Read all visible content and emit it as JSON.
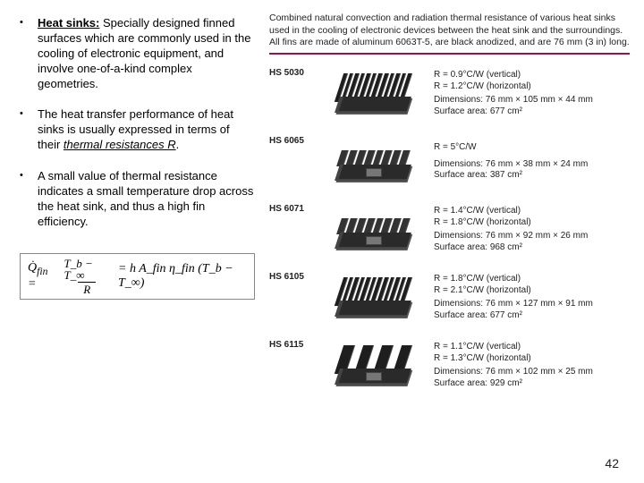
{
  "bullets": [
    {
      "lead": "Heat sinks:",
      "rest": " Specially designed finned surfaces which are commonly used in the cooling of electronic equipment, and involve one-of-a-kind complex geometries."
    },
    {
      "pre": "The heat transfer performance of heat sinks is usually expressed in terms of their ",
      "em": "thermal resistances R",
      "post": "."
    },
    {
      "text": "A small value of thermal resistance indicates a small temperature drop across the heat sink, and thus a high fin efficiency."
    }
  ],
  "formula": {
    "qdot": "Q̇",
    "qsub": "fin",
    "num": "T_b − T_∞",
    "den": "R",
    "rhs": "= h A_fin η_fin (T_b − T_∞)"
  },
  "caption": "Combined natural convection and radiation thermal resistance of various heat sinks used in the cooling of electronic devices between the heat sink and the surroundings. All fins are made of aluminum 6063T-5, are black anodized, and are 76 mm (3 in) long.",
  "rows": [
    {
      "id": "HS 5030",
      "r1": "R = 0.9°C/W (vertical)",
      "r2": "R = 1.2°C/W (horizontal)",
      "dim": "Dimensions: 76 mm × 105 mm × 44 mm",
      "area": "Surface area: 677 cm²",
      "variant": "tall"
    },
    {
      "id": "HS 6065",
      "r1": "R = 5°C/W",
      "r2": "",
      "dim": "Dimensions: 76 mm × 38 mm × 24 mm",
      "area": "Surface area: 387 cm²",
      "variant": "low"
    },
    {
      "id": "HS 6071",
      "r1": "R = 1.4°C/W (vertical)",
      "r2": "R = 1.8°C/W (horizontal)",
      "dim": "Dimensions: 76 mm × 92 mm × 26 mm",
      "area": "Surface area: 968 cm²",
      "variant": "low"
    },
    {
      "id": "HS 6105",
      "r1": "R = 1.8°C/W (vertical)",
      "r2": "R = 2.1°C/W (horizontal)",
      "dim": "Dimensions: 76 mm × 127 mm × 91 mm",
      "area": "Surface area: 677 cm²",
      "variant": "tall"
    },
    {
      "id": "HS 6115",
      "r1": "R = 1.1°C/W (vertical)",
      "r2": "R = 1.3°C/W (horizontal)",
      "dim": "Dimensions: 76 mm × 102 mm × 25 mm",
      "area": "Surface area: 929 cm²",
      "variant": "split"
    }
  ],
  "page_number": "42"
}
